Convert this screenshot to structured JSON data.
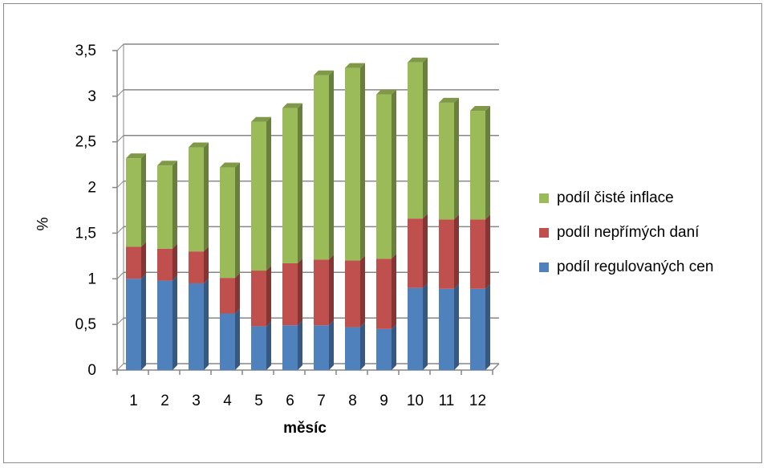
{
  "chart_data": {
    "type": "bar",
    "stacked": true,
    "categories": [
      "1",
      "2",
      "3",
      "4",
      "5",
      "6",
      "7",
      "8",
      "9",
      "10",
      "11",
      "12"
    ],
    "series": [
      {
        "name": "podíl regulovaných cen",
        "color": "#4f81bd",
        "values": [
          1.0,
          0.98,
          0.95,
          0.62,
          0.48,
          0.49,
          0.49,
          0.47,
          0.45,
          0.9,
          0.89,
          0.89
        ]
      },
      {
        "name": "podíl nepřímých daní",
        "color": "#c0504d",
        "values": [
          0.35,
          0.35,
          0.35,
          0.39,
          0.61,
          0.68,
          0.72,
          0.73,
          0.77,
          0.76,
          0.76,
          0.76
        ]
      },
      {
        "name": "podíl čisté inflace",
        "color": "#9bbb59",
        "values": [
          0.97,
          0.91,
          1.14,
          1.21,
          1.63,
          1.7,
          2.02,
          2.11,
          1.8,
          1.71,
          1.28,
          1.19
        ]
      }
    ],
    "ylim": [
      0,
      3.5
    ],
    "yticks": [
      "0",
      "0,5",
      "1",
      "1,5",
      "2",
      "2,5",
      "3",
      "3,5"
    ],
    "xlabel": "měsíc",
    "ylabel": "%",
    "grid": true,
    "legend": "right"
  }
}
